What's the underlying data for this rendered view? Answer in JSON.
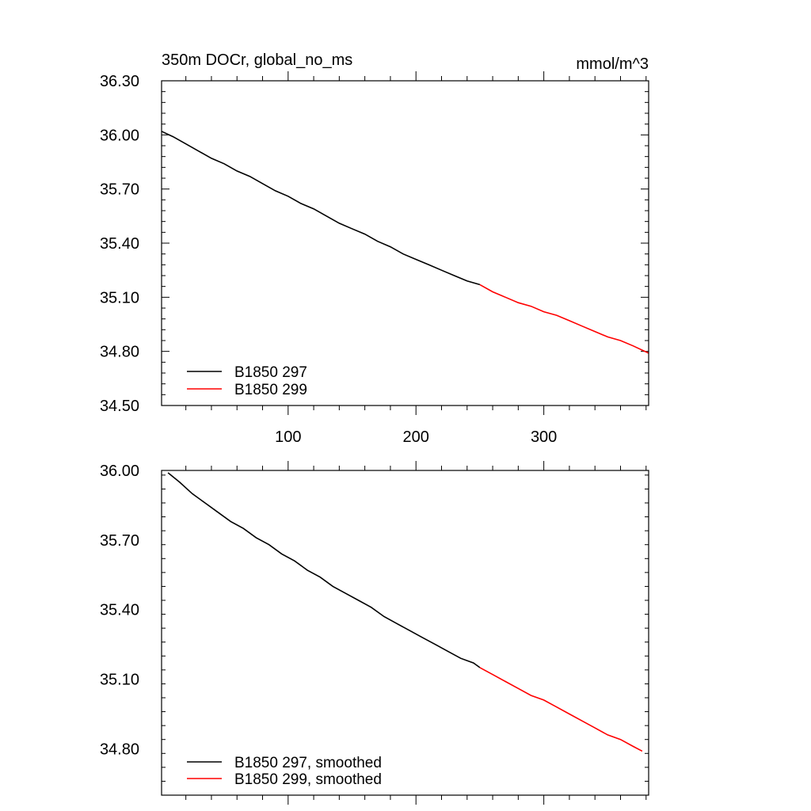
{
  "chart_data": [
    {
      "type": "line",
      "title_left": "350m DOCr, global_no_ms",
      "title_right": "mmol/m^3",
      "xlabel": "",
      "ylabel": "",
      "xlim": [
        1,
        382
      ],
      "ylim": [
        34.5,
        36.3
      ],
      "xticks": [
        100,
        200,
        300
      ],
      "xtick_labels": [
        "100",
        "200",
        "300"
      ],
      "yticks": [
        34.5,
        34.8,
        35.1,
        35.4,
        35.7,
        36.0,
        36.3
      ],
      "ytick_labels": [
        "34.50",
        "34.80",
        "35.10",
        "35.40",
        "35.70",
        "36.00",
        "36.30"
      ],
      "legend_position": "bottom-left",
      "grid": false,
      "series": [
        {
          "name": "B1850 297",
          "color": "#000000",
          "x": [
            1,
            10,
            20,
            30,
            40,
            50,
            60,
            70,
            80,
            90,
            100,
            110,
            120,
            130,
            140,
            150,
            160,
            170,
            180,
            190,
            200,
            210,
            220,
            230,
            240,
            250
          ],
          "y": [
            36.02,
            35.99,
            35.95,
            35.91,
            35.87,
            35.84,
            35.8,
            35.77,
            35.73,
            35.69,
            35.66,
            35.62,
            35.59,
            35.55,
            35.51,
            35.48,
            35.45,
            35.41,
            35.38,
            35.34,
            35.31,
            35.28,
            35.25,
            35.22,
            35.19,
            35.17
          ]
        },
        {
          "name": "B1850 299",
          "color": "#ff0000",
          "x": [
            250,
            260,
            270,
            280,
            290,
            300,
            310,
            320,
            330,
            340,
            350,
            360,
            370,
            382
          ],
          "y": [
            35.17,
            35.13,
            35.1,
            35.07,
            35.05,
            35.02,
            35.0,
            34.97,
            34.94,
            34.91,
            34.88,
            34.86,
            34.83,
            34.79
          ]
        }
      ]
    },
    {
      "type": "line",
      "xlabel": "",
      "ylabel": "",
      "xlim": [
        1,
        382
      ],
      "ylim": [
        34.6,
        36.0
      ],
      "xticks": [
        100,
        200,
        300
      ],
      "yticks": [
        34.8,
        35.1,
        35.4,
        35.7,
        36.0
      ],
      "ytick_labels": [
        "34.80",
        "35.10",
        "35.40",
        "35.70",
        "36.00"
      ],
      "legend_position": "bottom-left",
      "grid": false,
      "series": [
        {
          "name": "B1850 297, smoothed",
          "color": "#000000",
          "x": [
            6,
            15,
            25,
            35,
            45,
            55,
            65,
            75,
            85,
            95,
            105,
            115,
            125,
            135,
            145,
            155,
            165,
            175,
            185,
            195,
            205,
            215,
            225,
            235,
            245,
            250
          ],
          "y": [
            35.99,
            35.95,
            35.9,
            35.86,
            35.82,
            35.78,
            35.75,
            35.71,
            35.68,
            35.64,
            35.61,
            35.57,
            35.54,
            35.5,
            35.47,
            35.44,
            35.41,
            35.37,
            35.34,
            35.31,
            35.28,
            35.25,
            35.22,
            35.19,
            35.17,
            35.15
          ]
        },
        {
          "name": "B1850 299, smoothed",
          "color": "#ff0000",
          "x": [
            250,
            260,
            270,
            280,
            290,
            300,
            310,
            320,
            330,
            340,
            350,
            360,
            370,
            377
          ],
          "y": [
            35.15,
            35.12,
            35.09,
            35.06,
            35.03,
            35.01,
            34.98,
            34.95,
            34.92,
            34.89,
            34.86,
            34.84,
            34.81,
            34.79
          ]
        }
      ]
    }
  ]
}
